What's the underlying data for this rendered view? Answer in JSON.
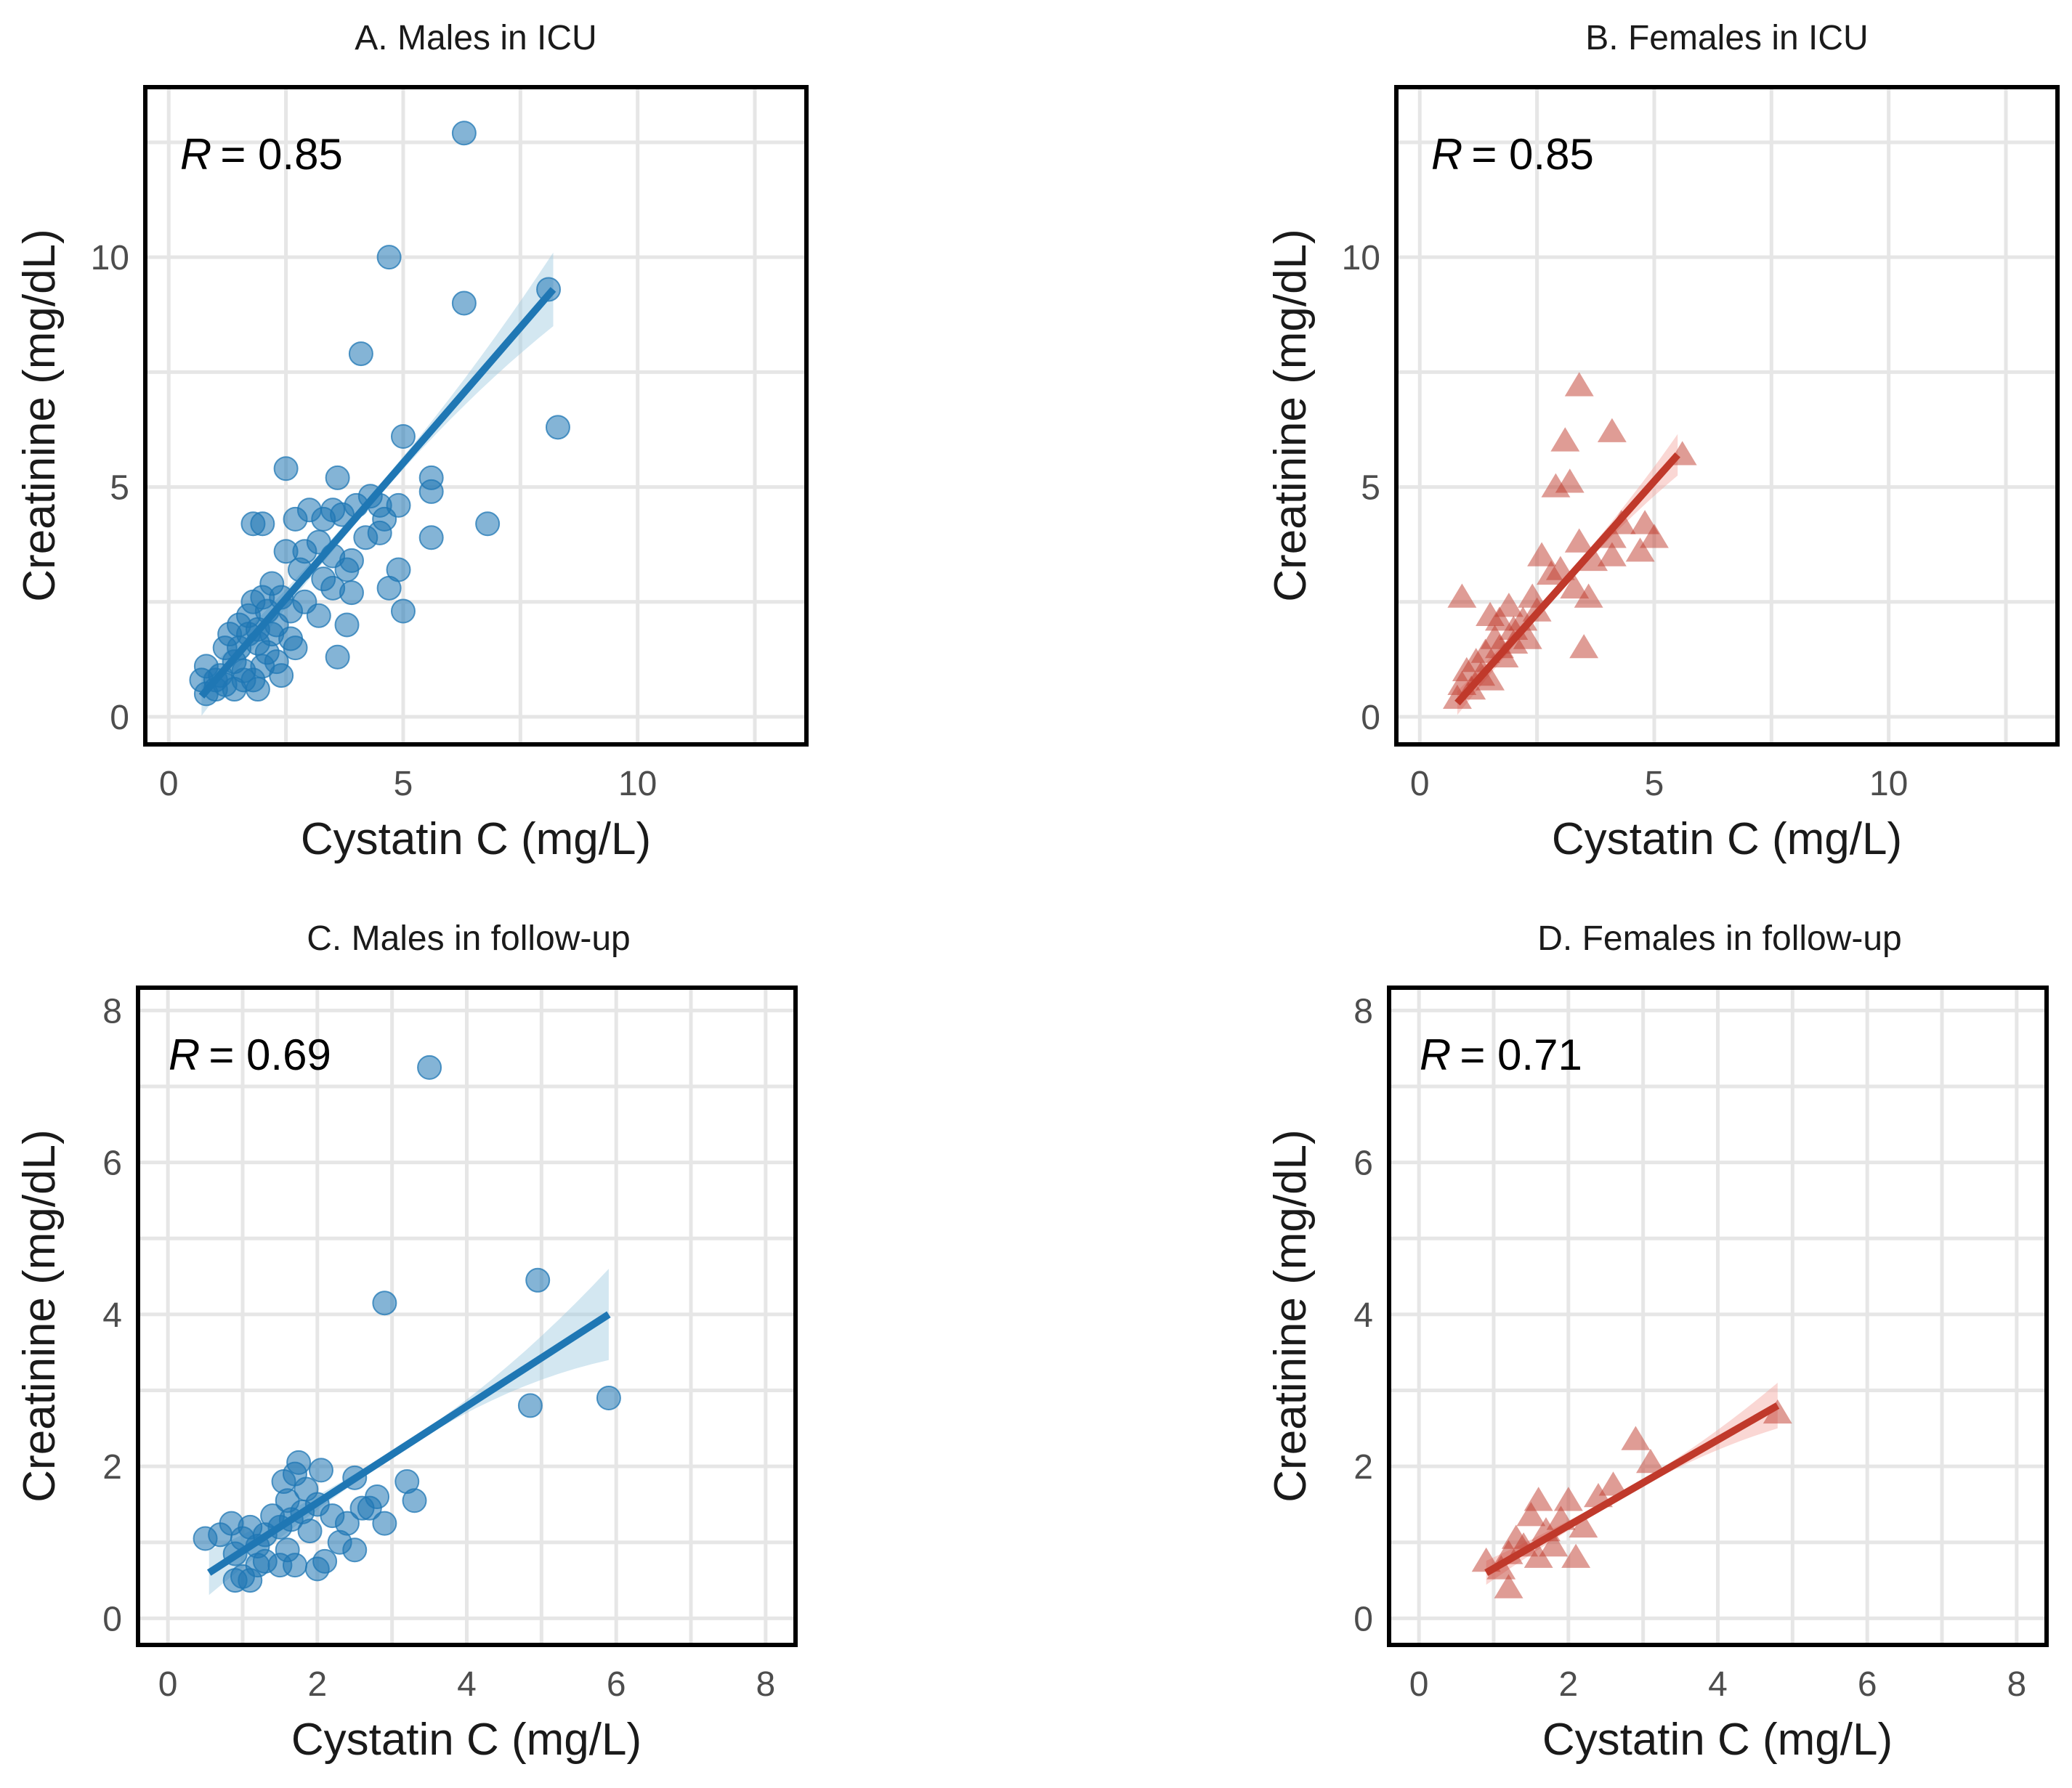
{
  "figure": {
    "colors": {
      "male": "#1f77b4",
      "male_ci": "#9ecae1",
      "female": "#c0392b",
      "female_ci": "#f4a6a0"
    }
  },
  "chart_data": [
    {
      "id": "A",
      "type": "scatter",
      "title": "A. Males in ICU",
      "marker": "circle",
      "color": "#1f77b4",
      "xlabel": "Cystatin C (mg/L)",
      "ylabel": "Creatinine (mg/dL)",
      "xlim": [
        -0.5,
        13.6
      ],
      "ylim": [
        -0.6,
        13.7
      ],
      "xticks": [
        0,
        5,
        10
      ],
      "yticks": [
        0,
        5,
        10
      ],
      "r_prefix": "R",
      "r_value": "= 0.85",
      "fit": {
        "x0": 0.7,
        "y0": 0.45,
        "x1": 8.2,
        "y1": 9.3,
        "ci_start": 0.35,
        "ci_end": 0.8
      },
      "points": [
        [
          6.3,
          12.7
        ],
        [
          4.7,
          10.0
        ],
        [
          6.3,
          9.0
        ],
        [
          8.1,
          9.3
        ],
        [
          4.1,
          7.9
        ],
        [
          8.3,
          6.3
        ],
        [
          5.0,
          6.1
        ],
        [
          2.5,
          5.4
        ],
        [
          3.6,
          5.2
        ],
        [
          5.6,
          5.2
        ],
        [
          5.6,
          4.9
        ],
        [
          6.8,
          4.2
        ],
        [
          5.6,
          3.9
        ],
        [
          4.9,
          3.2
        ],
        [
          5.0,
          2.3
        ],
        [
          4.7,
          2.8
        ],
        [
          3.9,
          2.7
        ],
        [
          3.8,
          2.0
        ],
        [
          3.6,
          1.3
        ],
        [
          1.8,
          4.2
        ],
        [
          2.0,
          4.2
        ],
        [
          3.0,
          4.5
        ],
        [
          3.3,
          4.3
        ],
        [
          3.5,
          4.5
        ],
        [
          3.7,
          4.4
        ],
        [
          4.0,
          4.6
        ],
        [
          4.3,
          4.8
        ],
        [
          4.5,
          4.6
        ],
        [
          4.6,
          4.3
        ],
        [
          4.9,
          4.6
        ],
        [
          4.2,
          3.9
        ],
        [
          4.5,
          4.0
        ],
        [
          2.7,
          4.3
        ],
        [
          2.9,
          3.6
        ],
        [
          3.2,
          3.8
        ],
        [
          3.5,
          3.5
        ],
        [
          3.9,
          3.4
        ],
        [
          2.5,
          3.6
        ],
        [
          2.8,
          3.2
        ],
        [
          3.3,
          3.0
        ],
        [
          3.5,
          2.8
        ],
        [
          3.8,
          3.2
        ],
        [
          2.2,
          2.9
        ],
        [
          2.4,
          2.6
        ],
        [
          2.6,
          2.3
        ],
        [
          2.9,
          2.5
        ],
        [
          3.2,
          2.2
        ],
        [
          1.8,
          2.5
        ],
        [
          2.0,
          2.6
        ],
        [
          2.1,
          2.3
        ],
        [
          2.3,
          2.0
        ],
        [
          2.6,
          1.7
        ],
        [
          2.7,
          1.5
        ],
        [
          1.5,
          2.0
        ],
        [
          1.7,
          1.8
        ],
        [
          1.9,
          1.6
        ],
        [
          2.1,
          1.4
        ],
        [
          2.3,
          1.2
        ],
        [
          2.4,
          0.9
        ],
        [
          1.2,
          1.5
        ],
        [
          1.4,
          1.2
        ],
        [
          1.6,
          1.0
        ],
        [
          1.8,
          0.8
        ],
        [
          2.0,
          1.1
        ],
        [
          1.9,
          1.9
        ],
        [
          1.3,
          1.8
        ],
        [
          1.1,
          0.9
        ],
        [
          1.0,
          0.6
        ],
        [
          0.8,
          0.5
        ],
        [
          0.8,
          1.1
        ],
        [
          1.0,
          0.8
        ],
        [
          1.2,
          0.7
        ],
        [
          1.4,
          0.6
        ],
        [
          1.6,
          0.8
        ],
        [
          1.5,
          1.5
        ],
        [
          1.7,
          2.2
        ],
        [
          2.2,
          1.8
        ],
        [
          1.9,
          0.6
        ],
        [
          0.7,
          0.8
        ]
      ]
    },
    {
      "id": "B",
      "type": "scatter",
      "title": "B. Females in ICU",
      "marker": "triangle",
      "color": "#c0392b",
      "xlabel": "Cystatin C (mg/L)",
      "ylabel": "Creatinine (mg/dL)",
      "xlim": [
        -0.5,
        13.6
      ],
      "ylim": [
        -0.6,
        13.7
      ],
      "xticks": [
        0,
        5,
        10
      ],
      "yticks": [
        0,
        5,
        10
      ],
      "r_prefix": "R",
      "r_value": "= 0.85",
      "fit": {
        "x0": 0.8,
        "y0": 0.3,
        "x1": 5.5,
        "y1": 5.7,
        "ci_start": 0.3,
        "ci_end": 0.45
      },
      "points": [
        [
          3.4,
          7.2
        ],
        [
          3.1,
          6.0
        ],
        [
          4.1,
          6.2
        ],
        [
          3.2,
          5.1
        ],
        [
          2.9,
          5.0
        ],
        [
          5.6,
          5.7
        ],
        [
          4.8,
          4.2
        ],
        [
          4.3,
          4.2
        ],
        [
          4.1,
          3.9
        ],
        [
          5.0,
          3.9
        ],
        [
          4.7,
          3.6
        ],
        [
          3.4,
          3.8
        ],
        [
          3.7,
          3.4
        ],
        [
          3.0,
          3.2
        ],
        [
          3.3,
          2.8
        ],
        [
          3.6,
          2.6
        ],
        [
          2.6,
          3.5
        ],
        [
          2.8,
          3.1
        ],
        [
          2.4,
          2.6
        ],
        [
          2.5,
          2.3
        ],
        [
          2.2,
          2.1
        ],
        [
          1.9,
          2.4
        ],
        [
          1.7,
          2.1
        ],
        [
          2.0,
          1.9
        ],
        [
          2.3,
          1.7
        ],
        [
          1.5,
          2.2
        ],
        [
          1.6,
          1.7
        ],
        [
          1.4,
          1.4
        ],
        [
          1.8,
          1.3
        ],
        [
          1.2,
          1.2
        ],
        [
          1.3,
          0.9
        ],
        [
          1.0,
          1.0
        ],
        [
          0.9,
          0.7
        ],
        [
          1.1,
          0.6
        ],
        [
          0.8,
          0.4
        ],
        [
          1.5,
          0.8
        ],
        [
          0.9,
          2.6
        ],
        [
          3.5,
          1.5
        ],
        [
          4.1,
          3.5
        ],
        [
          2.0,
          1.6
        ],
        [
          1.7,
          1.5
        ]
      ]
    },
    {
      "id": "C",
      "type": "scatter",
      "title": "C. Males in follow-up",
      "marker": "circle",
      "color": "#1f77b4",
      "xlabel": "Cystatin C (mg/L)",
      "ylabel": "Creatinine (mg/dL)",
      "xlim": [
        -0.4,
        8.4
      ],
      "ylim": [
        -0.35,
        8.3
      ],
      "xticks": [
        0,
        2,
        4,
        6,
        8
      ],
      "yticks": [
        0,
        2,
        4,
        6,
        8
      ],
      "r_prefix": "R",
      "r_value": "= 0.69",
      "fit": {
        "x0": 0.55,
        "y0": 0.6,
        "x1": 5.9,
        "y1": 4.0,
        "ci_start": 0.12,
        "ci_end": 0.6
      },
      "points": [
        [
          3.5,
          7.25
        ],
        [
          4.95,
          4.45
        ],
        [
          2.9,
          4.15
        ],
        [
          5.9,
          2.9
        ],
        [
          4.85,
          2.8
        ],
        [
          3.3,
          1.55
        ],
        [
          3.2,
          1.8
        ],
        [
          2.9,
          1.25
        ],
        [
          2.8,
          1.6
        ],
        [
          2.5,
          1.85
        ],
        [
          2.6,
          1.45
        ],
        [
          2.4,
          1.25
        ],
        [
          2.5,
          0.9
        ],
        [
          2.3,
          1.0
        ],
        [
          2.1,
          0.75
        ],
        [
          2.0,
          0.65
        ],
        [
          2.05,
          1.95
        ],
        [
          1.75,
          2.05
        ],
        [
          1.7,
          1.9
        ],
        [
          1.85,
          1.7
        ],
        [
          1.6,
          1.55
        ],
        [
          1.55,
          1.8
        ],
        [
          1.8,
          1.4
        ],
        [
          1.9,
          1.15
        ],
        [
          1.65,
          1.3
        ],
        [
          1.5,
          1.2
        ],
        [
          1.4,
          1.35
        ],
        [
          1.3,
          1.1
        ],
        [
          1.2,
          0.95
        ],
        [
          1.1,
          1.2
        ],
        [
          1.0,
          1.05
        ],
        [
          0.9,
          0.85
        ],
        [
          1.0,
          0.55
        ],
        [
          1.1,
          0.5
        ],
        [
          0.7,
          1.1
        ],
        [
          0.5,
          1.05
        ],
        [
          0.85,
          1.25
        ],
        [
          1.3,
          0.75
        ],
        [
          1.5,
          0.7
        ],
        [
          1.6,
          0.9
        ],
        [
          1.7,
          0.7
        ],
        [
          2.0,
          1.5
        ],
        [
          2.2,
          1.35
        ],
        [
          2.7,
          1.45
        ],
        [
          1.2,
          0.7
        ],
        [
          0.9,
          0.5
        ]
      ]
    },
    {
      "id": "D",
      "type": "scatter",
      "title": "D. Females in follow-up",
      "marker": "triangle",
      "color": "#c0392b",
      "xlabel": "Cystatin C (mg/L)",
      "ylabel": "Creatinine (mg/dL)",
      "xlim": [
        -0.4,
        8.4
      ],
      "ylim": [
        -0.35,
        8.3
      ],
      "xticks": [
        0,
        2,
        4,
        6,
        8
      ],
      "yticks": [
        0,
        2,
        4,
        6,
        8
      ],
      "r_prefix": "R",
      "r_value": "= 0.71",
      "fit": {
        "x0": 0.9,
        "y0": 0.6,
        "x1": 4.8,
        "y1": 2.8,
        "ci_start": 0.12,
        "ci_end": 0.3
      },
      "points": [
        [
          4.8,
          2.7
        ],
        [
          2.9,
          2.35
        ],
        [
          3.1,
          2.05
        ],
        [
          2.6,
          1.75
        ],
        [
          2.4,
          1.6
        ],
        [
          2.0,
          1.55
        ],
        [
          1.9,
          1.3
        ],
        [
          1.6,
          1.55
        ],
        [
          1.7,
          1.15
        ],
        [
          1.5,
          1.35
        ],
        [
          1.3,
          1.05
        ],
        [
          1.2,
          0.85
        ],
        [
          1.4,
          0.95
        ],
        [
          1.8,
          0.95
        ],
        [
          2.1,
          0.8
        ],
        [
          1.1,
          0.65
        ],
        [
          0.9,
          0.75
        ],
        [
          1.2,
          0.4
        ],
        [
          2.2,
          1.2
        ],
        [
          1.6,
          0.8
        ]
      ]
    }
  ]
}
